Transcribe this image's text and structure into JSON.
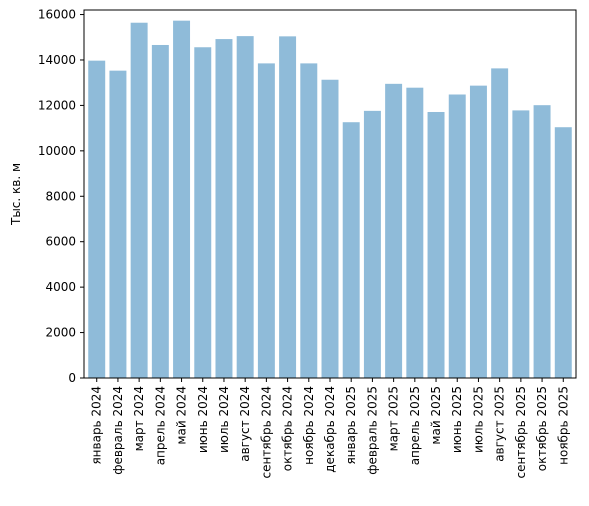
{
  "chart_data": {
    "type": "bar",
    "title": "",
    "xlabel": "",
    "ylabel": "Тыс. кв. м",
    "ylim": [
      0,
      16200
    ],
    "yticks": [
      0,
      2000,
      4000,
      6000,
      8000,
      10000,
      12000,
      14000,
      16000
    ],
    "bar_color": "#8fbbd9",
    "grid": false,
    "categories": [
      "январь 2024",
      "февраль 2024",
      "март 2024",
      "апрель 2024",
      "май 2024",
      "июнь 2024",
      "июль 2024",
      "август 2024",
      "сентябрь 2024",
      "октябрь 2024",
      "ноябрь 2024",
      "декабрь 2024",
      "январь 2025",
      "февраль 2025",
      "март 2025",
      "апрель 2025",
      "май 2025",
      "июнь 2025",
      "июль 2025",
      "август 2025",
      "сентябрь 2025",
      "октябрь 2025",
      "ноябрь 2025"
    ],
    "values": [
      13970,
      13530,
      15640,
      14660,
      15730,
      14560,
      14920,
      15050,
      13850,
      15040,
      13850,
      13130,
      11260,
      11760,
      12950,
      12780,
      11710,
      12480,
      12870,
      13630,
      11780,
      12010,
      11040
    ]
  }
}
